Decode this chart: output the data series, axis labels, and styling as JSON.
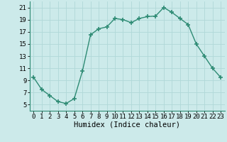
{
  "x": [
    0,
    1,
    2,
    3,
    4,
    5,
    6,
    7,
    8,
    9,
    10,
    11,
    12,
    13,
    14,
    15,
    16,
    17,
    18,
    19,
    20,
    21,
    22,
    23
  ],
  "y": [
    9.5,
    7.5,
    6.5,
    5.5,
    5.2,
    6.0,
    10.5,
    16.5,
    17.5,
    17.8,
    19.2,
    19.0,
    18.5,
    19.2,
    19.5,
    19.6,
    21.0,
    20.2,
    19.2,
    18.2,
    15.0,
    13.0,
    11.0,
    9.5
  ],
  "line_color": "#2e8b74",
  "marker": "+",
  "marker_size": 4,
  "bg_color": "#cceaea",
  "grid_color": "#b0d8d8",
  "xlabel": "Humidex (Indice chaleur)",
  "xlim": [
    -0.5,
    23.5
  ],
  "ylim": [
    4,
    22
  ],
  "yticks": [
    5,
    7,
    9,
    11,
    13,
    15,
    17,
    19,
    21
  ],
  "xticks": [
    0,
    1,
    2,
    3,
    4,
    5,
    6,
    7,
    8,
    9,
    10,
    11,
    12,
    13,
    14,
    15,
    16,
    17,
    18,
    19,
    20,
    21,
    22,
    23
  ],
  "xlabel_fontsize": 7.5,
  "tick_fontsize": 6.5
}
